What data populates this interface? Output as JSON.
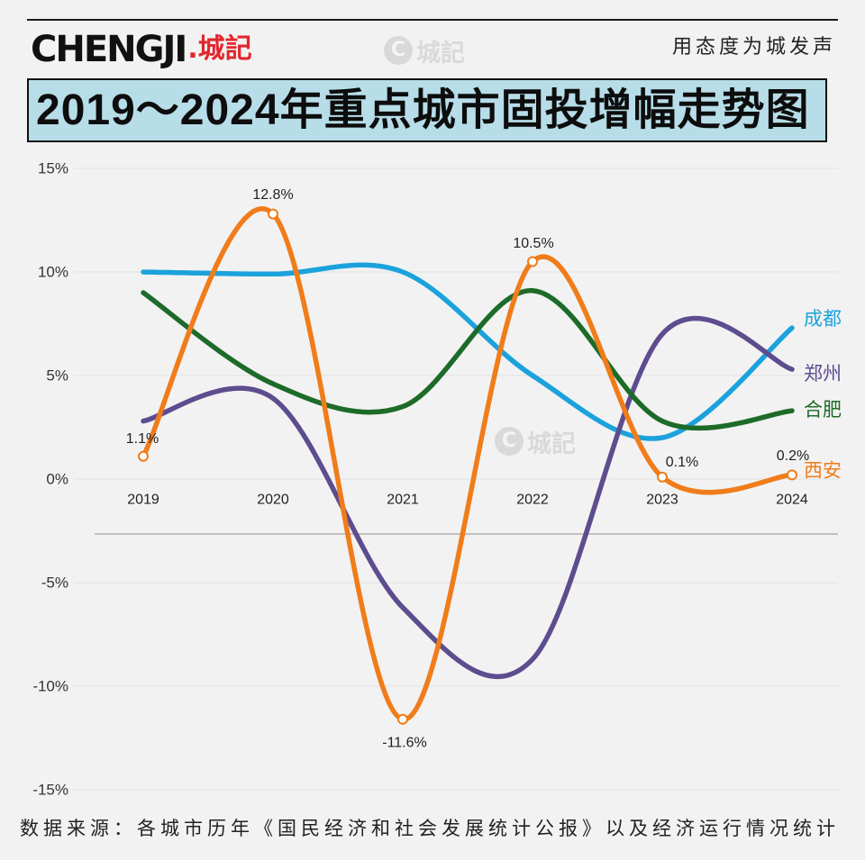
{
  "header": {
    "logo_latin": "CHENGJI",
    "logo_chinese": ".城記",
    "tagline": "用态度为城发声"
  },
  "watermark": "城記",
  "icons": {
    "watermark": "c-logo-icon"
  },
  "footer": {
    "source": "数据来源：各城市历年《国民经济和社会发展统计公报》以及经济运行情况统计"
  },
  "colors": {
    "background": "#f2f2f2",
    "title_box": "#b7dde8",
    "logo_red": "#e3262c"
  },
  "chart_data": {
    "type": "line",
    "title": "2019～2024年重点城市固投增幅走势图",
    "categories": [
      "2019",
      "2020",
      "2021",
      "2022",
      "2023",
      "2024"
    ],
    "ylim": [
      -15,
      15
    ],
    "y_ticks": [
      15,
      10,
      5,
      0,
      -5,
      -10,
      -15
    ],
    "y_tick_labels": [
      "15%",
      "10%",
      "5%",
      "0%",
      "-5%",
      "-10%",
      "-15%"
    ],
    "grid": true,
    "smooth": true,
    "legend": "right",
    "series": [
      {
        "name": "成都",
        "color": "#1ba2dc",
        "values": [
          10.0,
          9.9,
          10.0,
          5.0,
          2.0,
          7.3
        ]
      },
      {
        "name": "郑州",
        "color": "#5d4c8e",
        "values": [
          2.8,
          3.9,
          -6.2,
          -8.7,
          7.0,
          5.3
        ]
      },
      {
        "name": "合肥",
        "color": "#1d6b29",
        "values": [
          9.0,
          4.6,
          3.5,
          9.1,
          2.8,
          3.3
        ]
      },
      {
        "name": "西安",
        "color": "#f07c1a",
        "values": [
          1.1,
          12.8,
          -11.6,
          10.5,
          0.1,
          0.2
        ],
        "markers": true,
        "data_labels": [
          "1.1%",
          "12.8%",
          "-11.6%",
          "10.5%",
          "0.1%",
          "0.2%"
        ]
      }
    ]
  }
}
